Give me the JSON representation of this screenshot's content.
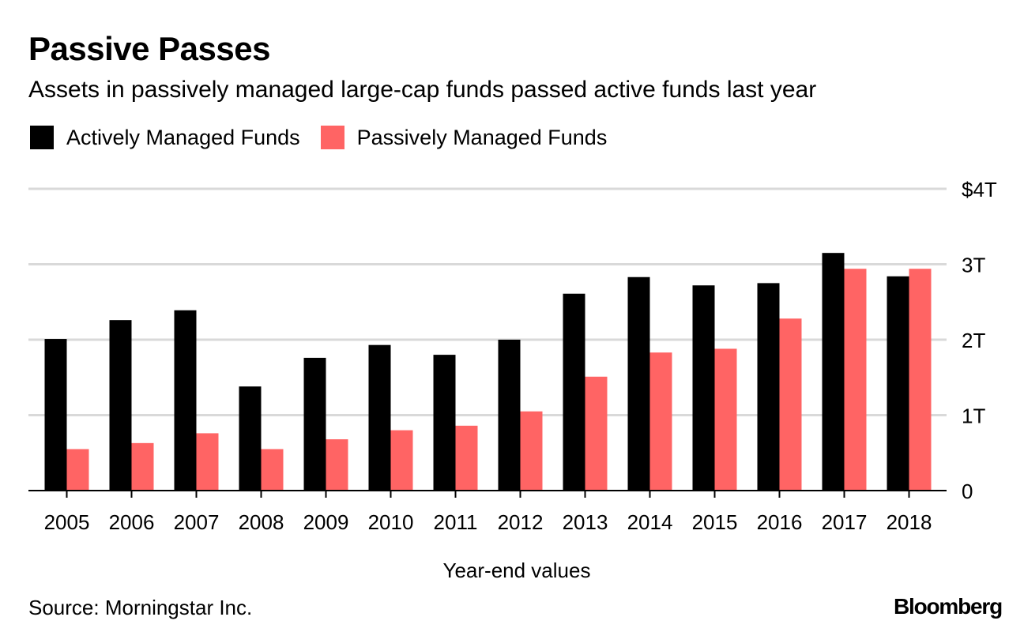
{
  "chart_data": {
    "type": "bar",
    "title": "Passive Passes",
    "subtitle": "Assets in passively managed large-cap funds passed active funds last year",
    "xlabel": "Year-end values",
    "ylabel": "",
    "ylim": [
      0,
      4
    ],
    "yticks": [
      {
        "value": 0,
        "label": "0"
      },
      {
        "value": 1,
        "label": "1T"
      },
      {
        "value": 2,
        "label": "2T"
      },
      {
        "value": 3,
        "label": "3T"
      },
      {
        "value": 4,
        "label": "$4T"
      }
    ],
    "grid": true,
    "legend_position": "top-left",
    "categories": [
      "2005",
      "2006",
      "2007",
      "2008",
      "2009",
      "2010",
      "2011",
      "2012",
      "2013",
      "2014",
      "2015",
      "2016",
      "2017",
      "2018"
    ],
    "series": [
      {
        "name": "Actively Managed Funds",
        "color": "#000000",
        "values": [
          2.01,
          2.26,
          2.39,
          1.38,
          1.76,
          1.93,
          1.8,
          2.0,
          2.61,
          2.83,
          2.72,
          2.75,
          3.15,
          2.84
        ]
      },
      {
        "name": "Passively Managed Funds",
        "color": "#ff6464",
        "values": [
          0.55,
          0.63,
          0.76,
          0.55,
          0.68,
          0.8,
          0.86,
          1.05,
          1.51,
          1.83,
          1.88,
          2.28,
          2.94,
          2.94
        ]
      }
    ]
  },
  "footer": {
    "source": "Source: Morningstar Inc.",
    "brand": "Bloomberg"
  }
}
